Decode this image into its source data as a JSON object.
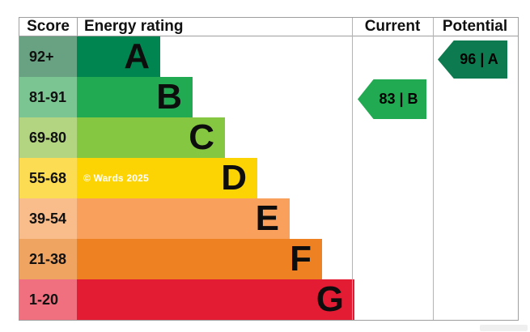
{
  "header": {
    "score": "Score",
    "energy_rating": "Energy rating",
    "current": "Current",
    "potential": "Potential"
  },
  "bands": [
    {
      "letter": "A",
      "score": "92+",
      "bar_color": "#008551",
      "cell_color": "#69a282"
    },
    {
      "letter": "B",
      "score": "81-91",
      "bar_color": "#21aa51",
      "cell_color": "#7bc593"
    },
    {
      "letter": "C",
      "score": "69-80",
      "bar_color": "#85c741",
      "cell_color": "#b3d582"
    },
    {
      "letter": "D",
      "score": "55-68",
      "bar_color": "#fcd303",
      "cell_color": "#fbdc52"
    },
    {
      "letter": "E",
      "score": "39-54",
      "bar_color": "#f9a15c",
      "cell_color": "#f9bd8b"
    },
    {
      "letter": "F",
      "score": "21-38",
      "bar_color": "#ee8122",
      "cell_color": "#f0a462"
    },
    {
      "letter": "G",
      "score": "1-20",
      "bar_color": "#e31c34",
      "cell_color": "#f0707f"
    }
  ],
  "markers": {
    "current": {
      "label": "83 | B",
      "color": "#21aa51"
    },
    "potential": {
      "label": "96 | A",
      "color": "#0e7a50"
    }
  },
  "copyright": "© Wards 2025",
  "chart_data": {
    "type": "bar",
    "title": "EPC energy rating chart",
    "columns": [
      "Score",
      "Energy rating",
      "Current",
      "Potential"
    ],
    "categories": [
      "A",
      "B",
      "C",
      "D",
      "E",
      "F",
      "G"
    ],
    "score_ranges": [
      "92+",
      "81-91",
      "69-80",
      "55-68",
      "39-54",
      "21-38",
      "1-20"
    ],
    "current": {
      "value": 83,
      "band": "B"
    },
    "potential": {
      "value": 96,
      "band": "A"
    },
    "band_colors": {
      "A": "#008551",
      "B": "#21aa51",
      "C": "#85c741",
      "D": "#fcd303",
      "E": "#f9a15c",
      "F": "#ee8122",
      "G": "#e31c34"
    },
    "legend_position": "none",
    "grid": false
  }
}
